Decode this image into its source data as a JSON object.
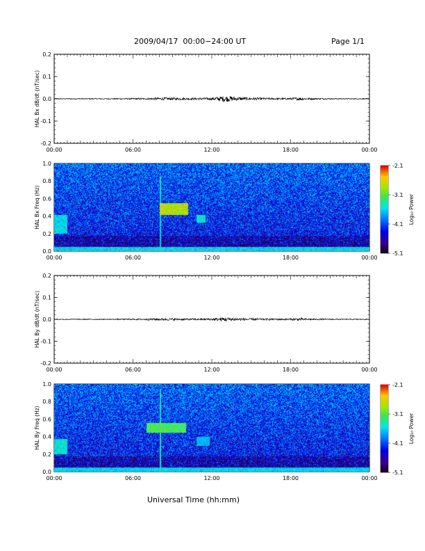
{
  "header": {
    "title": "2009/04/17  00:00−24:00 UT",
    "page": "Page 1/1"
  },
  "footer": {
    "xlabel": "Universal Time (hh:mm)"
  },
  "chart_data": [
    {
      "type": "line",
      "ylabel": "HAL Bx dB/dt (nT/sec)",
      "ylim": [
        -0.2,
        0.2
      ],
      "y_ticks": [
        "0.2",
        "0.1",
        "0.0",
        "-0.1",
        "-0.2"
      ],
      "x_ticks": [
        "00:00",
        "06:00",
        "12:00",
        "18:00",
        "00:00"
      ],
      "xlim_hours": [
        0,
        24
      ],
      "series": [
        {
          "x": [
            0,
            2,
            4,
            6,
            7,
            8,
            9,
            10,
            11,
            12,
            12.8,
            13,
            13.5,
            14,
            15,
            16,
            17,
            18,
            18.8,
            19,
            20,
            22,
            24
          ],
          "envelope": [
            0.002,
            0.002,
            0.002,
            0.003,
            0.004,
            0.006,
            0.006,
            0.005,
            0.005,
            0.006,
            0.012,
            0.014,
            0.012,
            0.008,
            0.006,
            0.005,
            0.004,
            0.004,
            0.008,
            0.005,
            0.003,
            0.002,
            0.002
          ]
        }
      ]
    },
    {
      "type": "heatmap",
      "ylabel": "HAL Bx Freq (Hz)",
      "ylim": [
        0,
        1
      ],
      "y_ticks": [
        "1.0",
        "0.8",
        "0.6",
        "0.4",
        "0.2",
        "0.0"
      ],
      "x_ticks": [
        "00:00",
        "06:00",
        "12:00",
        "18:00",
        "00:00"
      ],
      "colorbar": {
        "label": "Log₁₀ Power",
        "ticks": [
          "-2.1",
          "-3.1",
          "-4.1",
          "-5.1"
        ],
        "range": [
          -5.1,
          -2.1
        ]
      },
      "features": [
        {
          "t_hours": [
            8.0,
            10.2
          ],
          "freq_hz": [
            0.42,
            0.55
          ],
          "log_power": -2.4
        },
        {
          "t_hours": [
            0.0,
            1.0
          ],
          "freq_hz": [
            0.2,
            0.42
          ],
          "log_power": -3.4
        },
        {
          "t_hours": [
            10.8,
            11.5
          ],
          "freq_hz": [
            0.33,
            0.42
          ],
          "log_power": -3.3
        },
        {
          "t_hours": [
            8.0,
            8.1
          ],
          "freq_hz": [
            0.0,
            0.85
          ],
          "log_power": -3.3
        },
        {
          "t_hours": [
            0.0,
            24.0
          ],
          "freq_hz": [
            0.0,
            0.05
          ],
          "log_power": -3.4
        }
      ]
    },
    {
      "type": "line",
      "ylabel": "HAL By dB/dt (nT/sec)",
      "ylim": [
        -0.2,
        0.2
      ],
      "y_ticks": [
        "0.2",
        "0.1",
        "0.0",
        "-0.1",
        "-0.2"
      ],
      "x_ticks": [
        "00:00",
        "06:00",
        "12:00",
        "18:00",
        "00:00"
      ],
      "xlim_hours": [
        0,
        24
      ],
      "series": [
        {
          "x": [
            0,
            2,
            4,
            6,
            7,
            8,
            9,
            10,
            11,
            12,
            12.8,
            13,
            13.5,
            14,
            15,
            16,
            17,
            18,
            18.8,
            19,
            20,
            22,
            24
          ],
          "envelope": [
            0.002,
            0.002,
            0.002,
            0.003,
            0.004,
            0.005,
            0.005,
            0.004,
            0.004,
            0.005,
            0.009,
            0.01,
            0.008,
            0.006,
            0.005,
            0.004,
            0.004,
            0.004,
            0.007,
            0.004,
            0.003,
            0.002,
            0.002
          ]
        }
      ]
    },
    {
      "type": "heatmap",
      "ylabel": "HAL By Freq (Hz)",
      "ylim": [
        0,
        1
      ],
      "y_ticks": [
        "1.0",
        "0.8",
        "0.6",
        "0.4",
        "0.2",
        "0.0"
      ],
      "x_ticks": [
        "00:00",
        "06:00",
        "12:00",
        "18:00",
        "00:00"
      ],
      "colorbar": {
        "label": "Log₁₀ Power",
        "ticks": [
          "-2.1",
          "-3.1",
          "-4.1",
          "-5.1"
        ],
        "range": [
          -5.1,
          -2.1
        ]
      },
      "features": [
        {
          "t_hours": [
            7.0,
            10.0
          ],
          "freq_hz": [
            0.45,
            0.56
          ],
          "log_power": -2.9
        },
        {
          "t_hours": [
            0.0,
            1.0
          ],
          "freq_hz": [
            0.2,
            0.38
          ],
          "log_power": -3.3
        },
        {
          "t_hours": [
            10.8,
            11.8
          ],
          "freq_hz": [
            0.3,
            0.4
          ],
          "log_power": -3.6
        },
        {
          "t_hours": [
            8.0,
            8.1
          ],
          "freq_hz": [
            0.0,
            0.95
          ],
          "log_power": -3.2
        },
        {
          "t_hours": [
            0.0,
            24.0
          ],
          "freq_hz": [
            0.0,
            0.05
          ],
          "log_power": -3.4
        }
      ]
    }
  ]
}
